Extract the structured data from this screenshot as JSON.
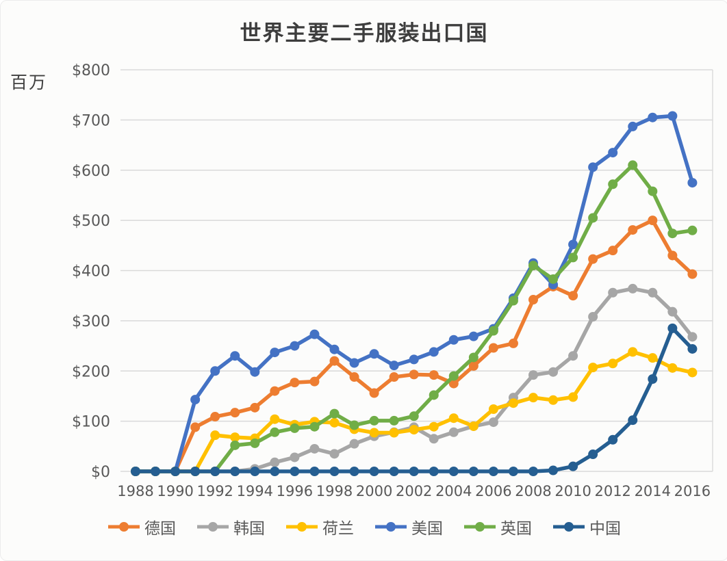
{
  "chart_data": {
    "type": "line",
    "title": "世界主要二手服装出口国",
    "y_axis_unit_label": "百万",
    "ylim": [
      0,
      800
    ],
    "grid": true,
    "legend_position": "bottom",
    "y_ticks": [
      "$0",
      "$100",
      "$200",
      "$300",
      "$400",
      "$500",
      "$600",
      "$700",
      "$800"
    ],
    "x": [
      1988,
      1989,
      1990,
      1991,
      1992,
      1993,
      1994,
      1995,
      1996,
      1997,
      1998,
      1999,
      2000,
      2001,
      2002,
      2003,
      2004,
      2005,
      2006,
      2007,
      2008,
      2009,
      2010,
      2011,
      2012,
      2013,
      2014,
      2015,
      2016
    ],
    "x_tick_labels": [
      "1988",
      "1990",
      "1992",
      "1994",
      "1996",
      "1998",
      "2000",
      "2002",
      "2004",
      "2006",
      "2008",
      "2010",
      "2012",
      "2014",
      "2016"
    ],
    "series": [
      {
        "name": "德国",
        "color": "#ED7D31",
        "values": [
          0,
          0,
          0,
          88,
          109,
          117,
          127,
          160,
          177,
          179,
          220,
          188,
          156,
          188,
          193,
          192,
          175,
          210,
          246,
          255,
          342,
          368,
          350,
          423,
          440,
          481,
          500,
          430,
          393
        ]
      },
      {
        "name": "韩国",
        "color": "#A6A6A6",
        "values": [
          0,
          0,
          0,
          0,
          0,
          0,
          5,
          18,
          28,
          45,
          35,
          55,
          70,
          78,
          88,
          65,
          78,
          90,
          98,
          147,
          192,
          198,
          230,
          308,
          356,
          364,
          356,
          318,
          268
        ]
      },
      {
        "name": "荷兰",
        "color": "#FFC000",
        "values": [
          0,
          0,
          0,
          0,
          72,
          68,
          66,
          104,
          93,
          99,
          97,
          84,
          77,
          77,
          83,
          89,
          106,
          90,
          124,
          136,
          147,
          142,
          148,
          207,
          215,
          238,
          226,
          206,
          197
        ]
      },
      {
        "name": "美国",
        "color": "#4472C4",
        "values": [
          0,
          0,
          0,
          143,
          200,
          230,
          198,
          237,
          250,
          273,
          243,
          216,
          234,
          211,
          223,
          238,
          262,
          269,
          284,
          345,
          415,
          372,
          452,
          606,
          635,
          687,
          705,
          708,
          575
        ]
      },
      {
        "name": "英国",
        "color": "#70AD47",
        "values": [
          0,
          0,
          0,
          0,
          0,
          52,
          56,
          78,
          86,
          89,
          115,
          92,
          101,
          101,
          110,
          152,
          190,
          227,
          280,
          340,
          410,
          383,
          426,
          505,
          572,
          610,
          558,
          474,
          480
        ]
      },
      {
        "name": "中国",
        "color": "#255E91",
        "values": [
          0,
          0,
          0,
          0,
          0,
          0,
          0,
          0,
          0,
          0,
          0,
          0,
          0,
          0,
          0,
          0,
          0,
          0,
          0,
          0,
          0,
          2,
          10,
          34,
          63,
          102,
          184,
          285,
          244
        ]
      }
    ]
  }
}
